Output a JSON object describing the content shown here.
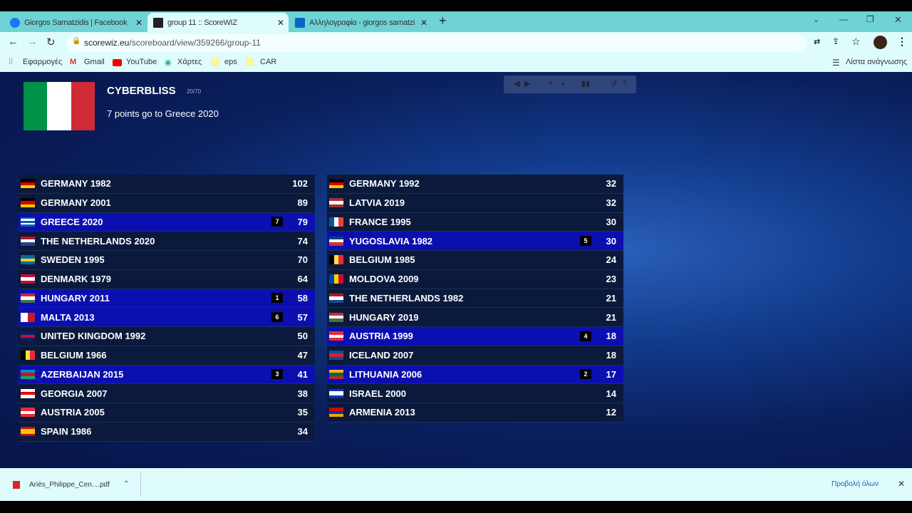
{
  "browser": {
    "tabs": [
      {
        "label": "Giorgos Sarnatzidis | Facebook",
        "icon": "facebook-icon"
      },
      {
        "label": "group 11 :: ScoreWIZ",
        "icon": "scorewiz-icon"
      },
      {
        "label": "Αλληλογραφία - giorgos sarnatzi",
        "icon": "outlook-icon"
      }
    ],
    "url_host": "scorewiz.eu",
    "url_path": "/scoreboard/view/359266/group-11",
    "bookmarks": [
      "Εφαρμογές",
      "Gmail",
      "YouTube",
      "Χάρτες",
      "eps",
      "CAR"
    ],
    "reading_list": "Λίστα ανάγνωσης"
  },
  "scoreboard": {
    "voter": "CYBERBLISS",
    "voter_flag": "italy",
    "progress": "20/70",
    "message": "7 points go to Greece 2020",
    "left": [
      {
        "name": "GERMANY 1982",
        "flag": "germany",
        "points": 102
      },
      {
        "name": "GERMANY 2001",
        "flag": "germany",
        "points": 89
      },
      {
        "name": "GREECE 2020",
        "flag": "greece",
        "points": 79,
        "received": 7
      },
      {
        "name": "THE NETHERLANDS 2020",
        "flag": "netherlands",
        "points": 74
      },
      {
        "name": "SWEDEN 1995",
        "flag": "sweden",
        "points": 70
      },
      {
        "name": "DENMARK 1979",
        "flag": "denmark",
        "points": 64
      },
      {
        "name": "HUNGARY 2011",
        "flag": "hungary",
        "points": 58,
        "received": 1
      },
      {
        "name": "MALTA 2013",
        "flag": "malta",
        "points": 57,
        "received": 6
      },
      {
        "name": "UNITED KINGDOM 1992",
        "flag": "uk",
        "points": 50
      },
      {
        "name": "BELGIUM 1966",
        "flag": "belgium",
        "points": 47
      },
      {
        "name": "AZERBAIJAN 2015",
        "flag": "azerbaijan",
        "points": 41,
        "received": 3
      },
      {
        "name": "GEORGIA 2007",
        "flag": "georgia",
        "points": 38
      },
      {
        "name": "AUSTRIA 2005",
        "flag": "austria",
        "points": 35
      },
      {
        "name": "SPAIN 1986",
        "flag": "spain",
        "points": 34
      }
    ],
    "right": [
      {
        "name": "GERMANY 1992",
        "flag": "germany",
        "points": 32
      },
      {
        "name": "LATVIA 2019",
        "flag": "latvia",
        "points": 32
      },
      {
        "name": "FRANCE 1995",
        "flag": "france",
        "points": 30
      },
      {
        "name": "YUGOSLAVIA 1982",
        "flag": "yugoslavia",
        "points": 30,
        "received": 5
      },
      {
        "name": "BELGIUM 1985",
        "flag": "belgium",
        "points": 24
      },
      {
        "name": "MOLDOVA 2009",
        "flag": "moldova",
        "points": 23
      },
      {
        "name": "THE NETHERLANDS 1982",
        "flag": "netherlands",
        "points": 21
      },
      {
        "name": "HUNGARY 2019",
        "flag": "hungary",
        "points": 21
      },
      {
        "name": "AUSTRIA 1999",
        "flag": "austria",
        "points": 18,
        "received": 4
      },
      {
        "name": "ICELAND 2007",
        "flag": "iceland",
        "points": 18
      },
      {
        "name": "LITHUANIA 2006",
        "flag": "lithuania",
        "points": 17,
        "received": 2
      },
      {
        "name": "ISRAEL 2000",
        "flag": "israel",
        "points": 14
      },
      {
        "name": "ARMENIA 2013",
        "flag": "armenia",
        "points": 12
      }
    ],
    "highlight_color": "#0c0fb0"
  },
  "download": {
    "file": "Ariès_Philippe_Cen....pdf",
    "show_all": "Προβολή όλων"
  }
}
